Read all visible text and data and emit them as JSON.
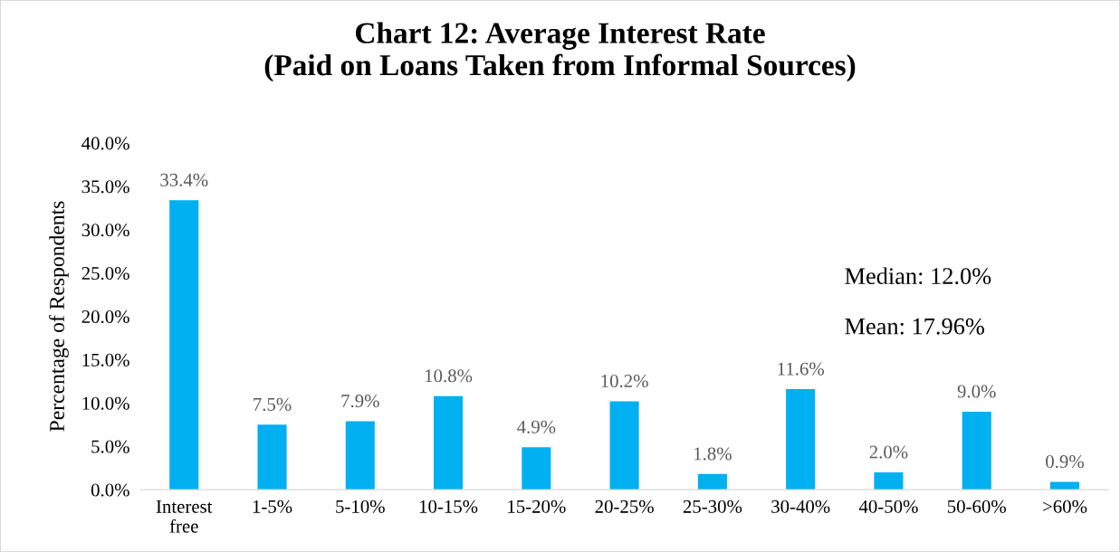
{
  "chart_data": {
    "type": "bar",
    "title": "Chart 12: Average Interest Rate\n(Paid on Loans Taken from Informal Sources)",
    "ylabel": "Percentage of Respondents",
    "categories": [
      "Interest\nfree",
      "1-5%",
      "5-10%",
      "10-15%",
      "15-20%",
      "20-25%",
      "25-30%",
      "30-40%",
      "40-50%",
      "50-60%",
      ">60%"
    ],
    "values": [
      33.4,
      7.5,
      7.9,
      10.8,
      4.9,
      10.2,
      1.8,
      11.6,
      2.0,
      9.0,
      0.9
    ],
    "value_labels": [
      "33.4%",
      "7.5%",
      "7.9%",
      "10.8%",
      "4.9%",
      "10.2%",
      "1.8%",
      "11.6%",
      "2.0%",
      "9.0%",
      "0.9%"
    ],
    "color": "#00b0f0",
    "ylim": [
      0,
      40
    ],
    "yticks": [
      {
        "value": 0,
        "label": "0.0%"
      },
      {
        "value": 5,
        "label": "5.0%"
      },
      {
        "value": 10,
        "label": "10.0%"
      },
      {
        "value": 15,
        "label": "15.0%"
      },
      {
        "value": 20,
        "label": "20.0%"
      },
      {
        "value": 25,
        "label": "25.0%"
      },
      {
        "value": 30,
        "label": "30.0%"
      },
      {
        "value": 35,
        "label": "35.0%"
      },
      {
        "value": 40,
        "label": "40.0%"
      }
    ],
    "annotations": [
      "Median: 12.0%",
      "Mean: 17.96%"
    ],
    "grid": false,
    "legend": false
  }
}
